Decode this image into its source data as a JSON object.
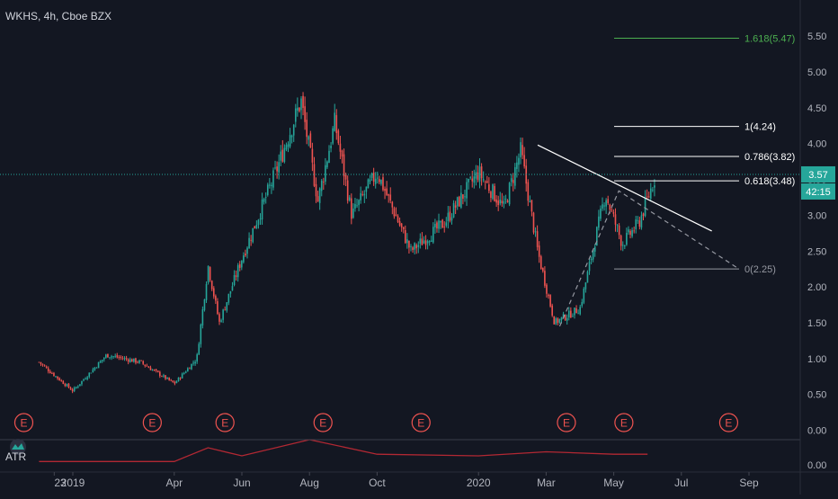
{
  "header": {
    "symbol_label": "WKHS, 4h, Cboe BZX"
  },
  "price_scale": {
    "ticks": [
      "5.50",
      "5.00",
      "4.50",
      "4.00",
      "3.50",
      "3.00",
      "2.50",
      "2.00",
      "1.50",
      "1.00",
      "0.50",
      "0.00"
    ],
    "last_price": "3.57",
    "countdown": "42:15"
  },
  "indicator": {
    "name": "ATR",
    "ticks": [
      "0.00"
    ]
  },
  "time_axis": {
    "labels": [
      "23",
      "2019",
      "Apr",
      "Jun",
      "Aug",
      "Oct",
      "2020",
      "Mar",
      "May",
      "Jul",
      "Sep"
    ]
  },
  "earnings_marker": "E",
  "colors": {
    "background": "#131722",
    "up": "#26a69a",
    "down": "#ef5350",
    "last_price": "#26a69a",
    "fib_extension": "#4caf50",
    "fib_level": "#ffffff",
    "fib_base": "#9598a1",
    "atr_line": "#b22833",
    "axis_text": "#b2b5be",
    "earnings": "#ef5350"
  },
  "chart_data": {
    "type": "candlestick",
    "symbol": "WKHS",
    "timeframe": "4h",
    "exchange": "Cboe BZX",
    "ylim": [
      0,
      5.75
    ],
    "last_price": 3.57,
    "price_path": [
      {
        "x": "Dec 2018",
        "y": 0.95
      },
      {
        "x": "2019",
        "y": 0.55
      },
      {
        "x": "Feb 2019",
        "y": 1.05
      },
      {
        "x": "Mar 2019",
        "y": 0.95
      },
      {
        "x": "Apr 2019",
        "y": 0.65
      },
      {
        "x": "May 2019",
        "y": 1.0
      },
      {
        "x": "May 2019",
        "y": 2.3
      },
      {
        "x": "May 2019",
        "y": 1.5
      },
      {
        "x": "Jun 2019",
        "y": 2.4
      },
      {
        "x": "Jul 2019",
        "y": 3.6
      },
      {
        "x": "Aug 2019",
        "y": 4.6
      },
      {
        "x": "Aug 2019",
        "y": 3.2
      },
      {
        "x": "Sep 2019",
        "y": 4.3
      },
      {
        "x": "Sep 2019",
        "y": 3.0
      },
      {
        "x": "Oct 2019",
        "y": 3.6
      },
      {
        "x": "Nov 2019",
        "y": 2.5
      },
      {
        "x": "Dec 2019",
        "y": 2.9
      },
      {
        "x": "2020",
        "y": 3.6
      },
      {
        "x": "Feb 2020",
        "y": 3.1
      },
      {
        "x": "Feb 2020",
        "y": 3.9
      },
      {
        "x": "Mar 2020",
        "y": 2.5
      },
      {
        "x": "Mar 2020",
        "y": 1.5
      },
      {
        "x": "Apr 2020",
        "y": 1.7
      },
      {
        "x": "May 2020",
        "y": 3.3
      },
      {
        "x": "May 2020",
        "y": 2.6
      },
      {
        "x": "Jun 2020",
        "y": 2.9
      },
      {
        "x": "Jun 2020",
        "y": 3.57
      }
    ],
    "fibonacci": [
      {
        "ratio": 1.618,
        "price": 5.47,
        "label": "1.618(5.47)"
      },
      {
        "ratio": 1,
        "price": 4.24,
        "label": "1(4.24)"
      },
      {
        "ratio": 0.786,
        "price": 3.82,
        "label": "0.786(3.82)"
      },
      {
        "ratio": 0.618,
        "price": 3.48,
        "label": "0.618(3.48)"
      },
      {
        "ratio": 0,
        "price": 2.25,
        "label": "0(2.25)"
      }
    ],
    "trendline": {
      "from": {
        "x": "Feb 2020",
        "y": 3.98
      },
      "to": {
        "x": "Jul 2020",
        "y": 2.78
      }
    },
    "earnings_events": [
      "Dec 2018",
      "Mar 2019",
      "May 2019",
      "Aug 2019",
      "Nov 2019",
      "Mar 2020",
      "May 2020",
      "Aug 2020"
    ],
    "atr": {
      "name": "ATR",
      "ylim": [
        0,
        0.4
      ],
      "points": [
        {
          "x": "Dec 2018",
          "y": 0.03
        },
        {
          "x": "Apr 2019",
          "y": 0.03
        },
        {
          "x": "May 2019",
          "y": 0.2
        },
        {
          "x": "Jun 2019",
          "y": 0.1
        },
        {
          "x": "Aug 2019",
          "y": 0.3
        },
        {
          "x": "Oct 2019",
          "y": 0.12
        },
        {
          "x": "2020",
          "y": 0.1
        },
        {
          "x": "Mar 2020",
          "y": 0.15
        },
        {
          "x": "May 2020",
          "y": 0.12
        },
        {
          "x": "Jun 2020",
          "y": 0.12
        }
      ]
    }
  }
}
